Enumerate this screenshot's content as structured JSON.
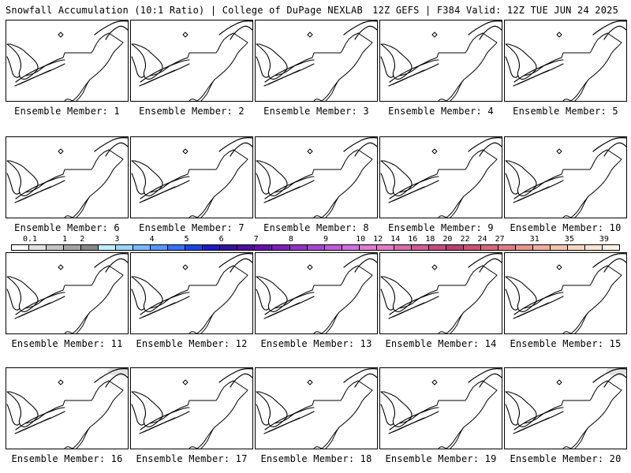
{
  "header": {
    "left_title": "Snowfall Accumulation (10:1 Ratio) | College of DuPage NEXLAB",
    "right_title": "12Z GEFS | F384 Valid: 12Z TUE JUN 24 2025"
  },
  "members": [
    {
      "label": "Ensemble Member: 1"
    },
    {
      "label": "Ensemble Member: 2"
    },
    {
      "label": "Ensemble Member: 3"
    },
    {
      "label": "Ensemble Member: 4"
    },
    {
      "label": "Ensemble Member: 5"
    },
    {
      "label": "Ensemble Member: 6"
    },
    {
      "label": "Ensemble Member: 7"
    },
    {
      "label": "Ensemble Member: 8"
    },
    {
      "label": "Ensemble Member: 9"
    },
    {
      "label": "Ensemble Member: 10"
    },
    {
      "label": "Ensemble Member: 11"
    },
    {
      "label": "Ensemble Member: 12"
    },
    {
      "label": "Ensemble Member: 13"
    },
    {
      "label": "Ensemble Member: 14"
    },
    {
      "label": "Ensemble Member: 15"
    },
    {
      "label": "Ensemble Member: 16",
      "snow_patch": true
    },
    {
      "label": "Ensemble Member: 17"
    },
    {
      "label": "Ensemble Member: 18"
    },
    {
      "label": "Ensemble Member: 19"
    },
    {
      "label": "Ensemble Member: 20",
      "snow_patch": true
    }
  ],
  "colorbar": {
    "labels": [
      "0.1",
      "1",
      "2",
      "3",
      "4",
      "5",
      "6",
      "7",
      "8",
      "9",
      "10",
      "12",
      "14",
      "16",
      "18",
      "20",
      "22",
      "24",
      "27",
      "31",
      "35",
      "39"
    ],
    "colors": [
      "#ffffff",
      "#e2e2e2",
      "#c4c4c4",
      "#a4a4a4",
      "#868686",
      "#bfeeff",
      "#99d6ff",
      "#77b8ff",
      "#5597ff",
      "#3672f5",
      "#1648e0",
      "#1d1bc4",
      "#36129c",
      "#4d0f9e",
      "#6311ab",
      "#7a1fb8",
      "#9232c5",
      "#a845d0",
      "#be5ad8",
      "#d16fe0",
      "#de7ccd",
      "#e07bc2",
      "#d96aac",
      "#cf5a96",
      "#c44b80",
      "#b83f6e",
      "#c95272",
      "#d7677a",
      "#e07d82",
      "#e8958e",
      "#efad9e",
      "#f4c2ae",
      "#f8d6c2",
      "#fbe6d6",
      "#fdf2e8"
    ]
  }
}
